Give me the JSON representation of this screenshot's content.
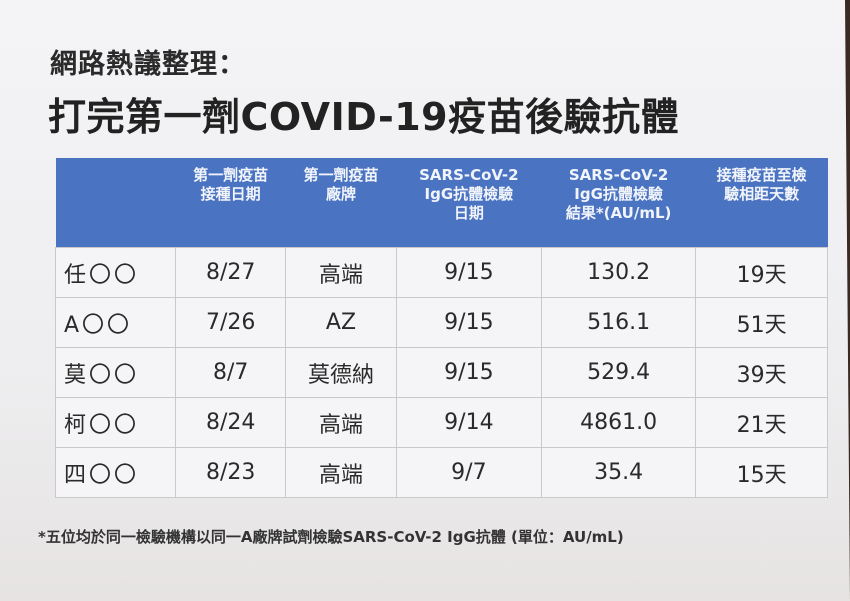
{
  "title_line1": "網路熱議整理：",
  "title_line2": "打完第一劑COVID-19疫苗後驗抗體",
  "table": {
    "headers": [
      "",
      "第一劑疫苗\n接種日期",
      "第一劑疫苗\n廠牌",
      "SARS-CoV-2\nIgG抗體檢驗\n日期",
      "SARS-CoV-2\nIgG抗體檢驗\n結果*(AU/mL)",
      "接種疫苗至檢\n驗相距天數"
    ],
    "rows": [
      [
        "任〇〇",
        "8/27",
        "高端",
        "9/15",
        "130.2",
        "19天"
      ],
      [
        "A〇〇",
        "7/26",
        "AZ",
        "9/15",
        "516.1",
        "51天"
      ],
      [
        "莫〇〇",
        "8/7",
        "莫德納",
        "9/15",
        "529.4",
        "39天"
      ],
      [
        "柯〇〇",
        "8/24",
        "高端",
        "9/14",
        "4861.0",
        "21天"
      ],
      [
        "四〇〇",
        "8/23",
        "高端",
        "9/7",
        "35.4",
        "15天"
      ]
    ]
  },
  "footnote": "*五位均於同一檢驗機構以同一A廠牌試劑檢驗SARS-CoV-2 IgG抗體 (單位：AU/mL)",
  "colors": {
    "header_bg": "#4a73c2"
  }
}
